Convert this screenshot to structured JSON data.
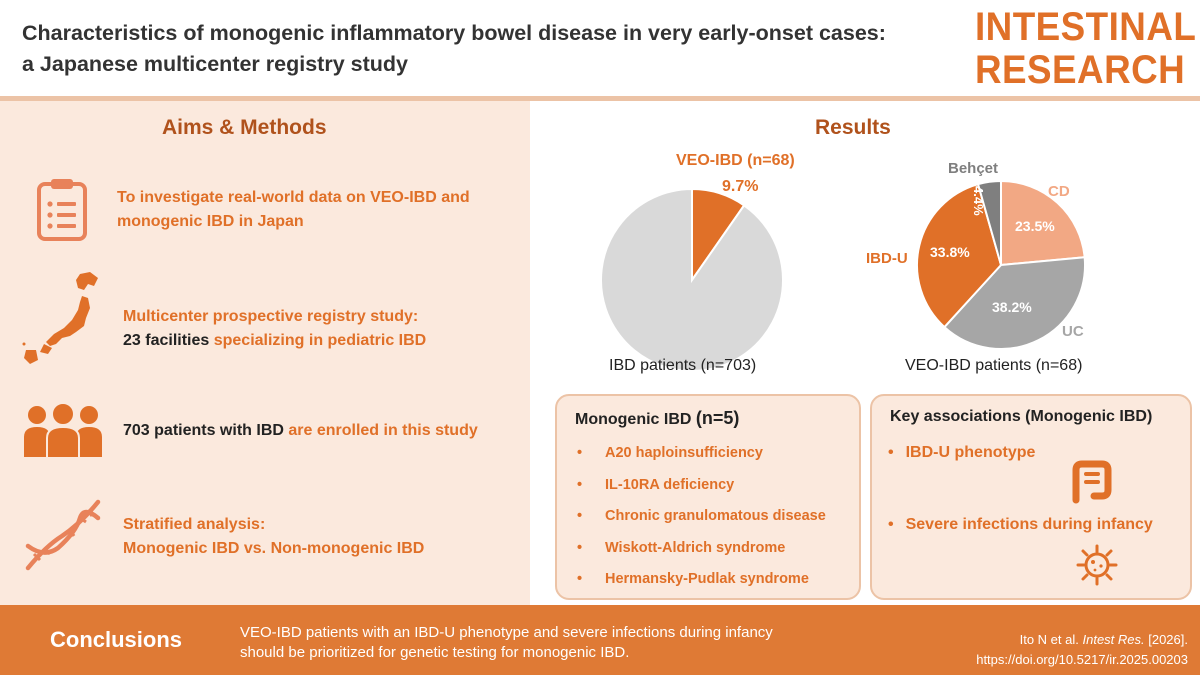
{
  "header": {
    "title_line1": "Characteristics of monogenic inflammatory bowel disease in very early-onset cases:",
    "title_line2": "a Japanese multicenter registry study",
    "logo_line1": "INTESTINAL",
    "logo_line2": "RESEARCH"
  },
  "aims": {
    "title": "Aims & Methods",
    "items": [
      {
        "icon": "clipboard-icon",
        "text": "To investigate real-world data on VEO-IBD and monogenic IBD in Japan"
      },
      {
        "icon": "japan-map-icon",
        "line1": "Multicenter prospective registry study:",
        "strong": "23 facilities",
        "rest": " specializing in pediatric IBD"
      },
      {
        "icon": "people-icon",
        "strong": "703 patients with IBD",
        "rest": " are enrolled in this study"
      },
      {
        "icon": "dna-icon",
        "line1": "Stratified analysis:",
        "line2": "Monogenic IBD vs. Non-monogenic IBD"
      }
    ]
  },
  "results": {
    "title": "Results",
    "pie1": {
      "label_title": "VEO-IBD (n=68)",
      "label_pct": "9.7%",
      "caption": "IBD patients (n=703)"
    },
    "pie2": {
      "caption": "VEO-IBD patients (n=68)"
    }
  },
  "chart_data": [
    {
      "type": "pie",
      "caption": "IBD patients (n=703)",
      "slices": [
        {
          "label": "VEO-IBD (n=68)",
          "value": 9.7,
          "color": "#e07028"
        },
        {
          "label": "",
          "value": 90.3,
          "color": "#d9d9d9"
        }
      ]
    },
    {
      "type": "pie",
      "caption": "VEO-IBD patients (n=68)",
      "slices": [
        {
          "label": "CD",
          "value": 23.5,
          "value_label": "23.5%",
          "color": "#f2a884",
          "label_color": "#f2a884"
        },
        {
          "label": "UC",
          "value": 38.2,
          "value_label": "38.2%",
          "color": "#a6a6a6",
          "label_color": "#a6a6a6"
        },
        {
          "label": "IBD-U",
          "value": 33.8,
          "value_label": "33.8%",
          "color": "#e07028",
          "label_color": "#e07028"
        },
        {
          "label": "Behçet",
          "value": 4.4,
          "value_label": "4.4%",
          "color": "#7f7f7f",
          "label_color": "#7f7f7f"
        }
      ]
    }
  ],
  "monogenic": {
    "title": "Monogenic IBD",
    "count": "(n=5)",
    "items": [
      "A20 haploinsufficiency",
      "IL-10RA deficiency",
      "Chronic granulomatous disease",
      "Wiskott-Aldrich syndrome",
      "Hermansky-Pudlak syndrome"
    ]
  },
  "key": {
    "title": "Key associations (Monogenic IBD)",
    "items": [
      "IBD-U phenotype",
      "Severe infections during infancy"
    ]
  },
  "footer": {
    "conclusions_label": "Conclusions",
    "text_line1": "VEO-IBD patients with an IBD-U phenotype and severe infections during infancy",
    "text_line2": "should be prioritized for genetic testing for monogenic IBD.",
    "cite_authors": "Ito N et al. ",
    "cite_journal": "Intest Res.",
    "cite_year": " [2026].",
    "cite_doi": "https://doi.org/10.5217/ir.2025.00203"
  },
  "colors": {
    "accent": "#e07028",
    "panel_bg": "#fbe9dd",
    "footer_bg": "#df7a35",
    "title_brown": "#b0521c"
  }
}
